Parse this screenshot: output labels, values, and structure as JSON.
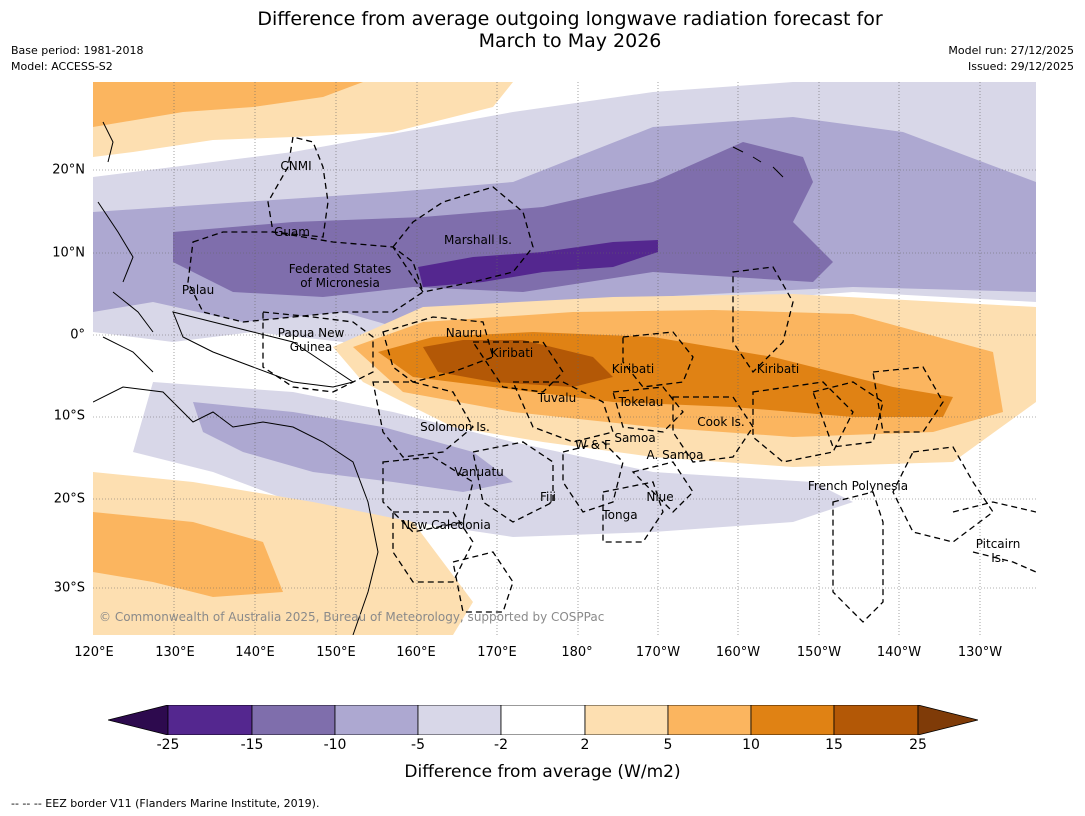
{
  "title": {
    "line1": "Difference from average outgoing longwave radiation forecast for",
    "line2": "March to May 2026"
  },
  "meta": {
    "base_period": "Base period: 1981-2018",
    "model": "Model: ACCESS-S2",
    "model_run": "Model run: 27/12/2025",
    "issued": "Issued: 29/12/2025"
  },
  "axes": {
    "lon_labels": [
      "120°E",
      "130°E",
      "140°E",
      "150°E",
      "160°E",
      "170°E",
      "180°",
      "170°W",
      "160°W",
      "150°W",
      "140°W",
      "130°W"
    ],
    "lat_labels": [
      "20°N",
      "10°N",
      "0°",
      "10°S",
      "20°S",
      "30°S"
    ]
  },
  "places": {
    "cnmi": "CNMI",
    "guam": "Guam",
    "marshall": "Marshall Is.",
    "fsm_line1": "Federated States",
    "fsm_line2": "of Micronesia",
    "palau": "Palau",
    "png_line1": "Papua New",
    "png_line2": "Guinea",
    "nauru": "Nauru",
    "kiribati_w": "Kiribati",
    "kiribati_c": "Kiribati",
    "kiribati_e": "Kiribati",
    "tuvalu": "Tuvalu",
    "tokelau": "Tokelau",
    "cook": "Cook Is.",
    "solomon": "Solomon Is.",
    "wf": "W & F",
    "samoa": "Samoa",
    "asamoa": "A. Samoa",
    "vanuatu": "Vanuatu",
    "fiji": "Fiji",
    "niue": "Niue",
    "tonga": "Tonga",
    "french_polynesia": "French Polynesia",
    "new_caledonia": "New Caledonia",
    "pitcairn_line1": "Pitcairn",
    "pitcairn_line2": "Is."
  },
  "copyright": "© Commonwealth of Australia 2025, Bureau of Meteorology, supported by COSPPac",
  "colorbar": {
    "ticks": [
      "-25",
      "-15",
      "-10",
      "-5",
      "-2",
      "2",
      "5",
      "10",
      "15",
      "25"
    ],
    "colors": [
      "#2d0a4e",
      "#54278f",
      "#7f6eac",
      "#ada8d1",
      "#d8d7e8",
      "#ffffff",
      "#fddfb1",
      "#fbb55f",
      "#e08214",
      "#b35806",
      "#7f3b08"
    ],
    "label": "Difference from average (W/m2)"
  },
  "footnote": "--  --  -- EEZ border V11 (Flanders Marine Institute, 2019).",
  "map_data": {
    "region": "Western and central tropical Pacific",
    "lon_range": [
      120,
      232
    ],
    "lat_range": [
      -36,
      30
    ],
    "graticule_lon_step": 10,
    "graticule_lat_step": 10,
    "variable": "OLR anomaly",
    "units": "W/m2"
  }
}
